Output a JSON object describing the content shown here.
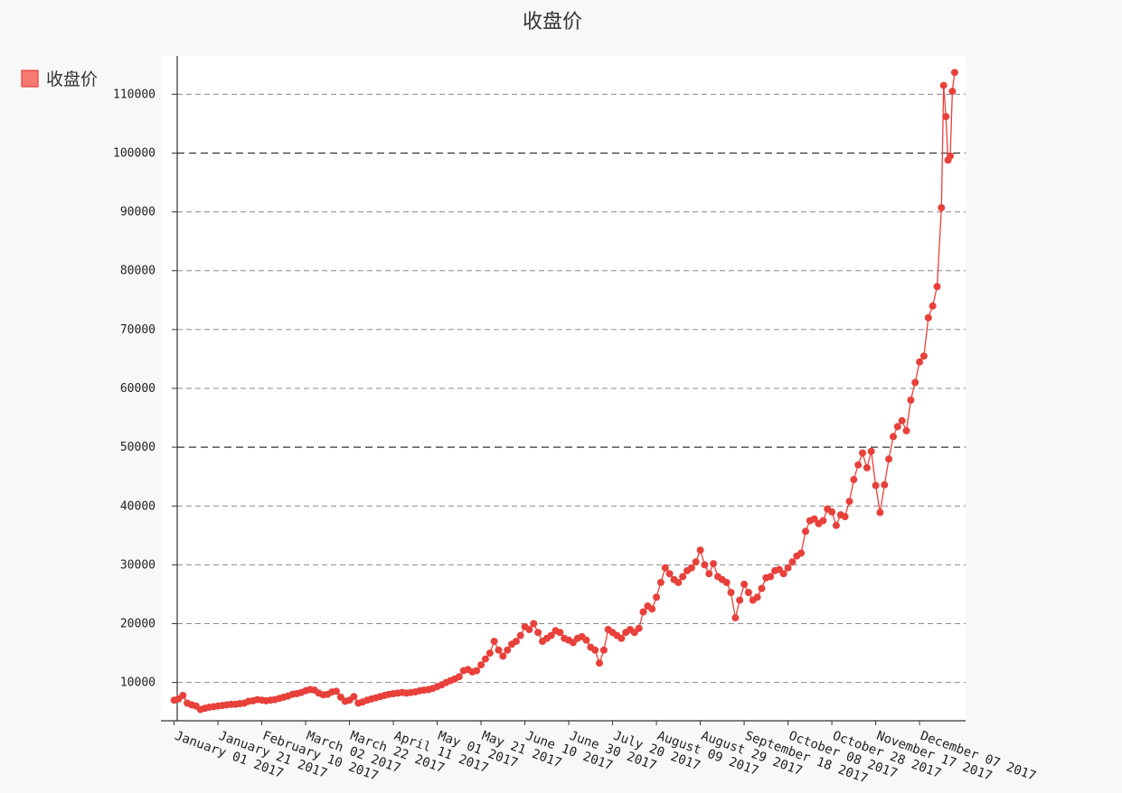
{
  "chart_data": {
    "type": "line",
    "title": "收盘价",
    "xlabel": "",
    "ylabel": "",
    "legend": {
      "placement": "top-left",
      "entries": [
        "收盘价"
      ]
    },
    "grid": {
      "y": true,
      "x": false
    },
    "ylim": [
      3500,
      116500
    ],
    "yticks": [
      10000,
      20000,
      30000,
      40000,
      50000,
      60000,
      70000,
      80000,
      90000,
      100000,
      110000
    ],
    "ymajor": [
      50000,
      100000
    ],
    "xlim": [
      "2016-12-26",
      "2017-12-28"
    ],
    "xticks": [
      "2017-01-01",
      "2017-01-21",
      "2017-02-10",
      "2017-03-02",
      "2017-03-22",
      "2017-04-11",
      "2017-05-01",
      "2017-05-21",
      "2017-06-10",
      "2017-06-30",
      "2017-07-20",
      "2017-08-09",
      "2017-08-29",
      "2017-09-18",
      "2017-10-08",
      "2017-10-28",
      "2017-11-17",
      "2017-12-07"
    ],
    "xticklabels": [
      "January 01 2017",
      "January 21 2017",
      "February 10 2017",
      "March 02 2017",
      "March 22 2017",
      "April 11 2017",
      "May 01 2017",
      "May 21 2017",
      "June 10 2017",
      "June 30 2017",
      "July 20 2017",
      "August 09 2017",
      "August 29 2017",
      "September 18 2017",
      "October 08 2017",
      "October 28 2017",
      "November 17 2017",
      "December 07 2017"
    ],
    "color": "#e8403a",
    "series": [
      {
        "name": "收盘价",
        "points": [
          [
            "2017-01-01",
            7000
          ],
          [
            "2017-01-03",
            7200
          ],
          [
            "2017-01-05",
            7800
          ],
          [
            "2017-01-07",
            6500
          ],
          [
            "2017-01-09",
            6200
          ],
          [
            "2017-01-11",
            6000
          ],
          [
            "2017-01-13",
            5400
          ],
          [
            "2017-01-15",
            5600
          ],
          [
            "2017-01-17",
            5800
          ],
          [
            "2017-01-19",
            5900
          ],
          [
            "2017-01-21",
            6000
          ],
          [
            "2017-01-23",
            6100
          ],
          [
            "2017-01-25",
            6200
          ],
          [
            "2017-01-27",
            6300
          ],
          [
            "2017-01-29",
            6300
          ],
          [
            "2017-01-31",
            6400
          ],
          [
            "2017-02-02",
            6500
          ],
          [
            "2017-02-04",
            6800
          ],
          [
            "2017-02-06",
            6900
          ],
          [
            "2017-02-08",
            7100
          ],
          [
            "2017-02-10",
            7000
          ],
          [
            "2017-02-12",
            6900
          ],
          [
            "2017-02-14",
            7000
          ],
          [
            "2017-02-16",
            7100
          ],
          [
            "2017-02-18",
            7300
          ],
          [
            "2017-02-20",
            7500
          ],
          [
            "2017-02-22",
            7700
          ],
          [
            "2017-02-24",
            8000
          ],
          [
            "2017-02-26",
            8100
          ],
          [
            "2017-02-28",
            8300
          ],
          [
            "2017-03-02",
            8600
          ],
          [
            "2017-03-04",
            8800
          ],
          [
            "2017-03-06",
            8700
          ],
          [
            "2017-03-08",
            8200
          ],
          [
            "2017-03-10",
            7900
          ],
          [
            "2017-03-12",
            8000
          ],
          [
            "2017-03-14",
            8400
          ],
          [
            "2017-03-16",
            8500
          ],
          [
            "2017-03-18",
            7500
          ],
          [
            "2017-03-20",
            6800
          ],
          [
            "2017-03-22",
            7000
          ],
          [
            "2017-03-24",
            7600
          ],
          [
            "2017-03-26",
            6500
          ],
          [
            "2017-03-28",
            6700
          ],
          [
            "2017-03-30",
            7000
          ],
          [
            "2017-04-01",
            7200
          ],
          [
            "2017-04-03",
            7400
          ],
          [
            "2017-04-05",
            7600
          ],
          [
            "2017-04-07",
            7800
          ],
          [
            "2017-04-09",
            8000
          ],
          [
            "2017-04-11",
            8100
          ],
          [
            "2017-04-13",
            8200
          ],
          [
            "2017-04-15",
            8300
          ],
          [
            "2017-04-17",
            8200
          ],
          [
            "2017-04-19",
            8300
          ],
          [
            "2017-04-21",
            8400
          ],
          [
            "2017-04-23",
            8600
          ],
          [
            "2017-04-25",
            8700
          ],
          [
            "2017-04-27",
            8800
          ],
          [
            "2017-04-29",
            9000
          ],
          [
            "2017-05-01",
            9300
          ],
          [
            "2017-05-03",
            9600
          ],
          [
            "2017-05-05",
            10000
          ],
          [
            "2017-05-07",
            10300
          ],
          [
            "2017-05-09",
            10600
          ],
          [
            "2017-05-11",
            11000
          ],
          [
            "2017-05-13",
            12000
          ],
          [
            "2017-05-15",
            12200
          ],
          [
            "2017-05-17",
            11800
          ],
          [
            "2017-05-19",
            12000
          ],
          [
            "2017-05-21",
            13000
          ],
          [
            "2017-05-23",
            14000
          ],
          [
            "2017-05-25",
            15000
          ],
          [
            "2017-05-27",
            17000
          ],
          [
            "2017-05-29",
            15500
          ],
          [
            "2017-05-31",
            14500
          ],
          [
            "2017-06-02",
            15500
          ],
          [
            "2017-06-04",
            16500
          ],
          [
            "2017-06-06",
            17000
          ],
          [
            "2017-06-08",
            18000
          ],
          [
            "2017-06-10",
            19500
          ],
          [
            "2017-06-12",
            19000
          ],
          [
            "2017-06-14",
            20000
          ],
          [
            "2017-06-16",
            18500
          ],
          [
            "2017-06-18",
            17000
          ],
          [
            "2017-06-20",
            17500
          ],
          [
            "2017-06-22",
            18000
          ],
          [
            "2017-06-24",
            18800
          ],
          [
            "2017-06-26",
            18500
          ],
          [
            "2017-06-28",
            17500
          ],
          [
            "2017-06-30",
            17200
          ],
          [
            "2017-07-02",
            16800
          ],
          [
            "2017-07-04",
            17500
          ],
          [
            "2017-07-06",
            17800
          ],
          [
            "2017-07-08",
            17200
          ],
          [
            "2017-07-10",
            16000
          ],
          [
            "2017-07-12",
            15500
          ],
          [
            "2017-07-14",
            13300
          ],
          [
            "2017-07-16",
            15500
          ],
          [
            "2017-07-18",
            19000
          ],
          [
            "2017-07-20",
            18500
          ],
          [
            "2017-07-22",
            18000
          ],
          [
            "2017-07-24",
            17500
          ],
          [
            "2017-07-26",
            18500
          ],
          [
            "2017-07-28",
            19000
          ],
          [
            "2017-07-30",
            18500
          ],
          [
            "2017-08-01",
            19200
          ],
          [
            "2017-08-03",
            22000
          ],
          [
            "2017-08-05",
            23000
          ],
          [
            "2017-08-07",
            22500
          ],
          [
            "2017-08-09",
            24500
          ],
          [
            "2017-08-11",
            27000
          ],
          [
            "2017-08-13",
            29500
          ],
          [
            "2017-08-15",
            28500
          ],
          [
            "2017-08-17",
            27500
          ],
          [
            "2017-08-19",
            27000
          ],
          [
            "2017-08-21",
            28000
          ],
          [
            "2017-08-23",
            29000
          ],
          [
            "2017-08-25",
            29500
          ],
          [
            "2017-08-27",
            30500
          ],
          [
            "2017-08-29",
            32500
          ],
          [
            "2017-08-31",
            30000
          ],
          [
            "2017-09-02",
            28500
          ],
          [
            "2017-09-04",
            30200
          ],
          [
            "2017-09-06",
            28000
          ],
          [
            "2017-09-08",
            27500
          ],
          [
            "2017-09-10",
            27000
          ],
          [
            "2017-09-12",
            25300
          ],
          [
            "2017-09-14",
            21000
          ],
          [
            "2017-09-16",
            24000
          ],
          [
            "2017-09-18",
            26700
          ],
          [
            "2017-09-20",
            25300
          ],
          [
            "2017-09-22",
            24000
          ],
          [
            "2017-09-24",
            24500
          ],
          [
            "2017-09-26",
            26000
          ],
          [
            "2017-09-28",
            27800
          ],
          [
            "2017-09-30",
            28000
          ],
          [
            "2017-10-02",
            29000
          ],
          [
            "2017-10-04",
            29200
          ],
          [
            "2017-10-06",
            28500
          ],
          [
            "2017-10-08",
            29500
          ],
          [
            "2017-10-10",
            30500
          ],
          [
            "2017-10-12",
            31500
          ],
          [
            "2017-10-14",
            32000
          ],
          [
            "2017-10-16",
            35700
          ],
          [
            "2017-10-18",
            37500
          ],
          [
            "2017-10-20",
            37800
          ],
          [
            "2017-10-22",
            37000
          ],
          [
            "2017-10-24",
            37500
          ],
          [
            "2017-10-26",
            39500
          ],
          [
            "2017-10-28",
            39000
          ],
          [
            "2017-10-30",
            36700
          ],
          [
            "2017-11-01",
            38500
          ],
          [
            "2017-11-03",
            38200
          ],
          [
            "2017-11-05",
            40800
          ],
          [
            "2017-11-07",
            44500
          ],
          [
            "2017-11-09",
            47000
          ],
          [
            "2017-11-11",
            49000
          ],
          [
            "2017-11-13",
            46500
          ],
          [
            "2017-11-15",
            49300
          ],
          [
            "2017-11-17",
            43500
          ],
          [
            "2017-11-19",
            38900
          ],
          [
            "2017-11-21",
            43600
          ],
          [
            "2017-11-23",
            48000
          ],
          [
            "2017-11-25",
            51800
          ],
          [
            "2017-11-27",
            53500
          ],
          [
            "2017-11-29",
            54500
          ],
          [
            "2017-12-01",
            52800
          ],
          [
            "2017-12-03",
            58000
          ],
          [
            "2017-12-05",
            61000
          ],
          [
            "2017-12-07",
            64500
          ],
          [
            "2017-12-09",
            65500
          ],
          [
            "2017-12-11",
            72000
          ],
          [
            "2017-12-13",
            74000
          ],
          [
            "2017-12-15",
            77300
          ],
          [
            "2017-12-17",
            90700
          ],
          [
            "2017-12-18",
            111500
          ],
          [
            "2017-12-19",
            106200
          ],
          [
            "2017-12-20",
            98800
          ],
          [
            "2017-12-21",
            99500
          ],
          [
            "2017-12-22",
            110500
          ],
          [
            "2017-12-23",
            113700
          ]
        ]
      }
    ]
  }
}
